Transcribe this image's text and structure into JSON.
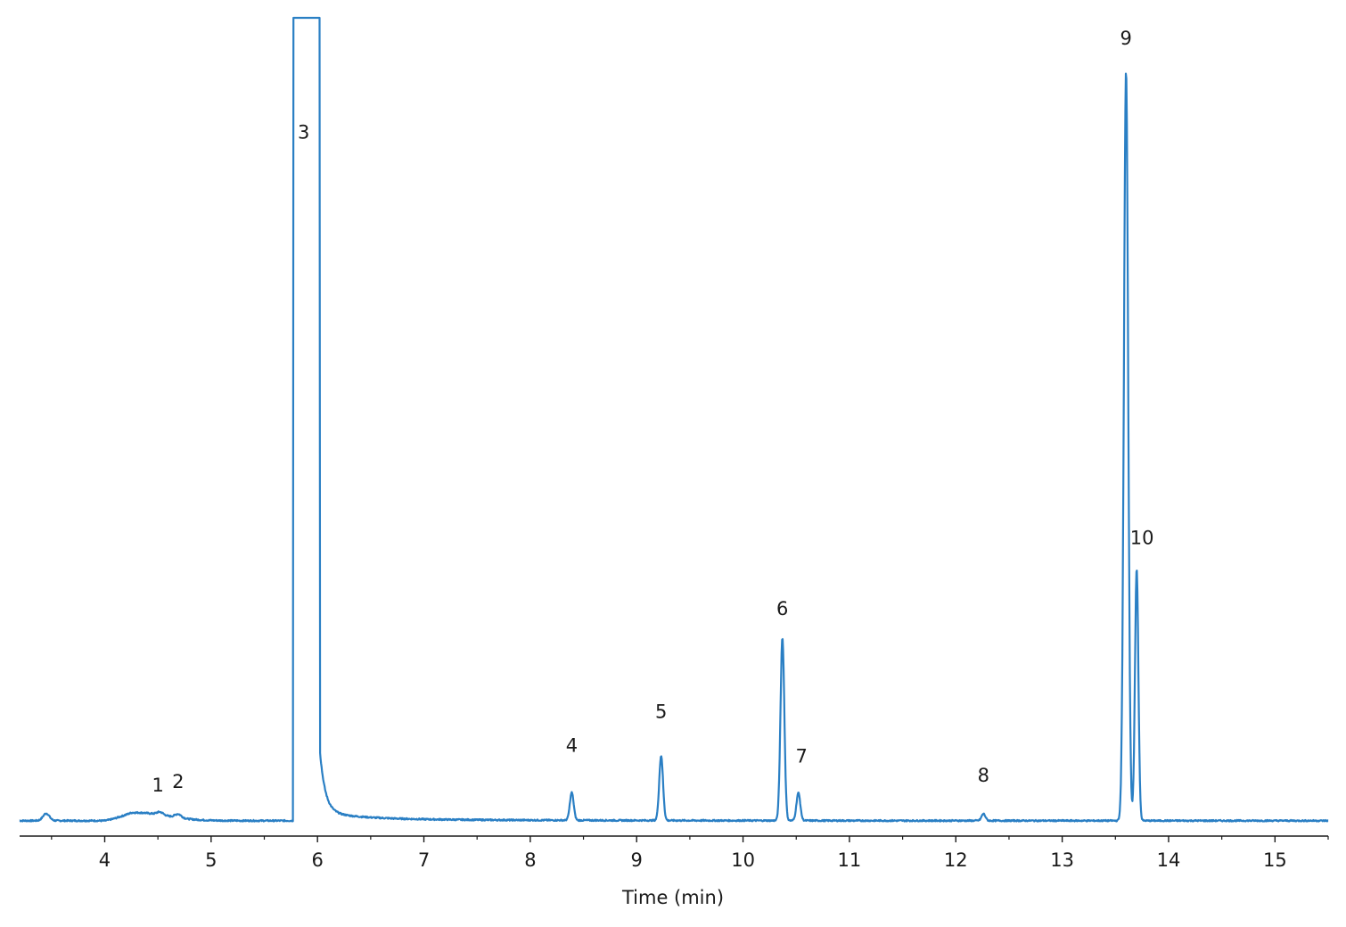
{
  "chart_data": {
    "type": "line",
    "title": "",
    "xlabel": "Time (min)",
    "ylabel": "",
    "xlim": [
      3.2,
      15.5
    ],
    "ylim": [
      0,
      100
    ],
    "grid": false,
    "line_color": "#2a7fc4",
    "x_ticks": [
      4,
      5,
      6,
      7,
      8,
      9,
      10,
      11,
      12,
      13,
      14,
      15
    ],
    "x_tick_labels": [
      "4",
      "5",
      "6",
      "7",
      "8",
      "9",
      "10",
      "11",
      "12",
      "13",
      "14",
      "15"
    ],
    "x_minor_ticks": [
      3.5,
      4.5,
      5.5,
      6.5,
      7.5,
      8.5,
      9.5,
      10.5,
      11.5,
      12.5,
      13.5,
      14.5,
      15.5
    ],
    "baseline": 0.25,
    "peaks": [
      {
        "label": "1",
        "x": 4.52,
        "y": 0.6,
        "label_x": 4.5,
        "label_y": 3.9
      },
      {
        "label": "2",
        "x": 4.69,
        "y": 0.7,
        "label_x": 4.69,
        "label_y": 4.3
      },
      {
        "label": "3",
        "x": 5.89,
        "y": 100,
        "label_x": 5.87,
        "label_y": 85.0
      },
      {
        "label": "4",
        "x": 8.39,
        "y": 3.7,
        "label_x": 8.39,
        "label_y": 8.8
      },
      {
        "label": "5",
        "x": 9.23,
        "y": 8.3,
        "label_x": 9.23,
        "label_y": 13.0
      },
      {
        "label": "6",
        "x": 10.37,
        "y": 23.0,
        "label_x": 10.37,
        "label_y": 25.8
      },
      {
        "label": "7",
        "x": 10.52,
        "y": 3.7,
        "label_x": 10.55,
        "label_y": 7.5
      },
      {
        "label": "8",
        "x": 12.26,
        "y": 1.1,
        "label_x": 12.26,
        "label_y": 5.1
      },
      {
        "label": "9",
        "x": 13.6,
        "y": 93.5,
        "label_x": 13.6,
        "label_y": 96.7
      },
      {
        "label": "10",
        "x": 13.7,
        "y": 31.6,
        "label_x": 13.75,
        "label_y": 34.6
      }
    ]
  }
}
